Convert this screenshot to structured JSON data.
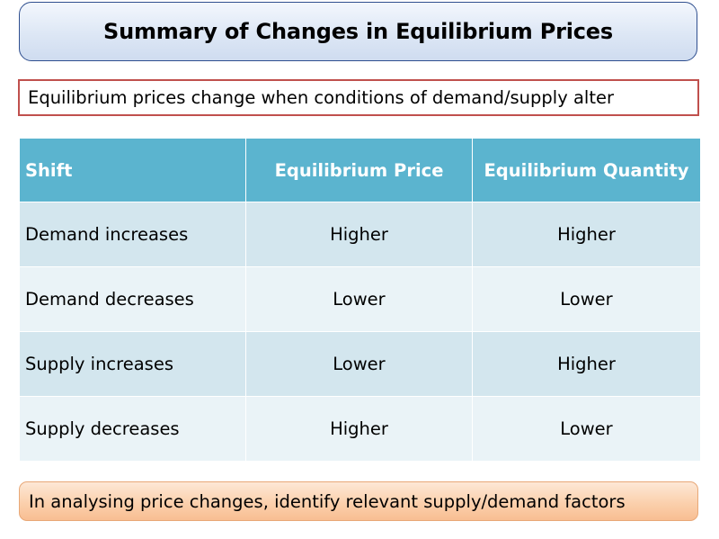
{
  "title": "Summary of Changes in Equilibrium Prices",
  "subtitle": "Equilibrium prices change when conditions of demand/supply alter",
  "table": {
    "headers": [
      "Shift",
      "Equilibrium Price",
      "Equilibrium Quantity"
    ],
    "rows": [
      [
        "Demand increases",
        "Higher",
        "Higher"
      ],
      [
        "Demand decreases",
        "Lower",
        "Lower"
      ],
      [
        "Supply increases",
        "Lower",
        "Higher"
      ],
      [
        "Supply decreases",
        "Higher",
        "Lower"
      ]
    ]
  },
  "footer": "In analysing price changes, identify relevant supply/demand factors",
  "colors": {
    "header_fill": "#5bb4cf",
    "row_fill_dark": "#d3e6ee",
    "row_fill_light": "#eaf3f7",
    "subtitle_border": "#c0504d",
    "footer_fill": "#fbd0ad"
  }
}
